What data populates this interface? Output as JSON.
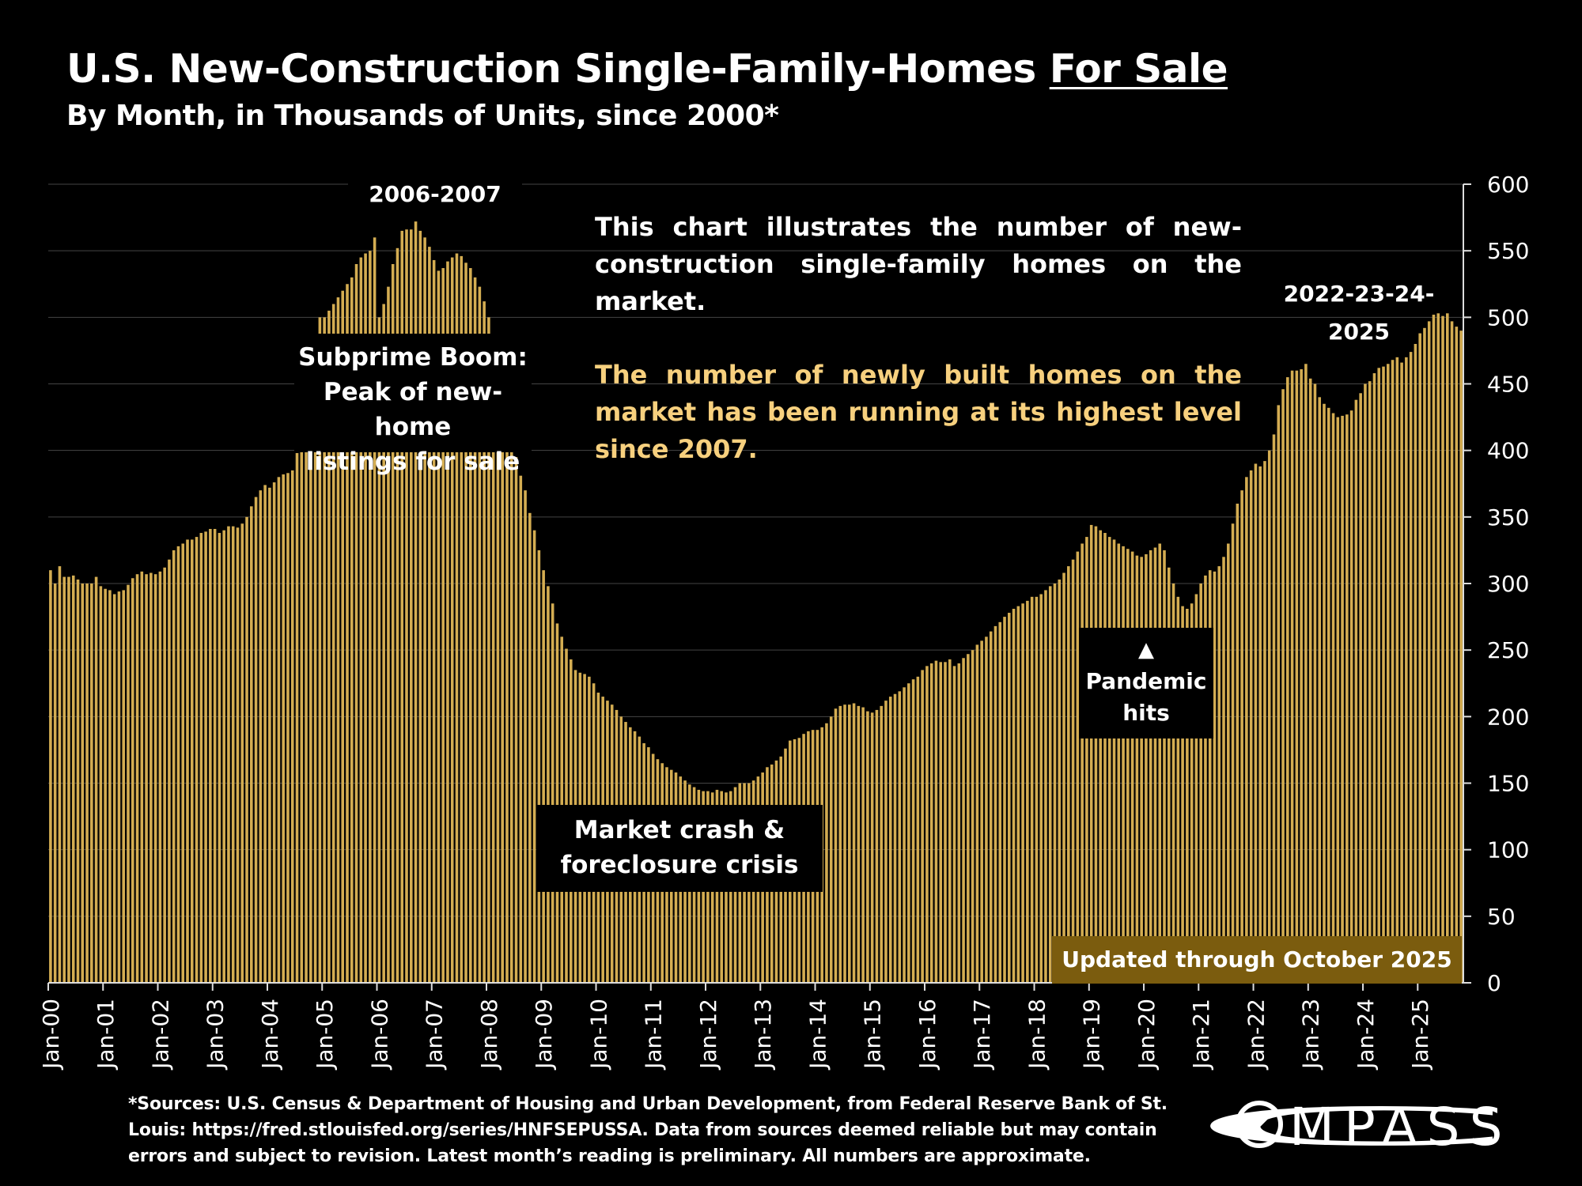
{
  "title_main": "U.S. New-Construction Single-Family-Homes ",
  "title_underlined": "For Sale",
  "subtitle": "By Month, in Thousands of Units, since 2000*",
  "annotations": {
    "peak_label": "2006-2007",
    "boom_line1": "Subprime Boom:",
    "boom_line2": "Peak of new-home",
    "boom_line3": "listings for sale",
    "crash_line1": "Market crash &",
    "crash_line2": "foreclosure crisis",
    "pandemic_arrow": "▲",
    "pandemic_line1": "Pandemic",
    "pandemic_line2": "hits",
    "recent_label": "2022-23-24-2025",
    "updated": "Updated through October 2025"
  },
  "info": {
    "text": "This chart illustrates the number of new-construction single-family homes on the market.",
    "highlight": "The number of newly built homes on the market has been running at its highest level since 2007."
  },
  "footer": {
    "line1": "*Sources: U.S. Census & Department of Housing and Urban Development, from Federal Reserve Bank of St.",
    "line2": "Louis:  https://fred.stlouisfed.org/series/HNFSEPUSSA. Data from sources deemed reliable but may contain",
    "line3": "errors and subject to revision. Latest month’s reading is preliminary. All numbers are approximate."
  },
  "logo_text": "COMPASS",
  "colors": {
    "bar": "#d4ad52",
    "background": "#000000",
    "grid": "#444444",
    "highlight_text": "#f7d07e",
    "updated_box": "#7b5c0e"
  },
  "chart_data": {
    "type": "bar",
    "title": "U.S. New-Construction Single-Family-Homes For Sale",
    "subtitle": "By Month, in Thousands of Units, since 2000*",
    "ylim": [
      0,
      600
    ],
    "y_ticks": [
      0,
      50,
      100,
      150,
      200,
      250,
      300,
      350,
      400,
      450,
      500,
      550,
      600
    ],
    "x_tick_labels": [
      "Jan-00",
      "Jan-01",
      "Jan-02",
      "Jan-03",
      "Jan-04",
      "Jan-05",
      "Jan-06",
      "Jan-07",
      "Jan-08",
      "Jan-09",
      "Jan-10",
      "Jan-11",
      "Jan-12",
      "Jan-13",
      "Jan-14",
      "Jan-15",
      "Jan-16",
      "Jan-17",
      "Jan-18",
      "Jan-19",
      "Jan-20",
      "Jan-21",
      "Jan-22",
      "Jan-23",
      "Jan-24",
      "Jan-25"
    ],
    "grid": true,
    "y_axis_position": "right",
    "first_month": "Jan-00",
    "last_month": "Oct-25",
    "yearly_values": [
      [
        310,
        300,
        313,
        305,
        305,
        306,
        303,
        300,
        300,
        300,
        305,
        298
      ],
      [
        296,
        295,
        292,
        294,
        295,
        299,
        304,
        307,
        309,
        307,
        308,
        307
      ],
      [
        309,
        312,
        318,
        325,
        328,
        330,
        333,
        333,
        335,
        338,
        339,
        341
      ],
      [
        341,
        338,
        340,
        343,
        343,
        342,
        345,
        350,
        358,
        365,
        370,
        374
      ],
      [
        372,
        376,
        380,
        382,
        383,
        385,
        398,
        420,
        440,
        460,
        480,
        500
      ],
      [
        500,
        505,
        510,
        515,
        520,
        525,
        530,
        540,
        545,
        548,
        550,
        560
      ],
      [
        500,
        510,
        523,
        540,
        552,
        565,
        566,
        566,
        572,
        565,
        560,
        553
      ],
      [
        543,
        535,
        537,
        542,
        545,
        548,
        546,
        541,
        537,
        530,
        523,
        512
      ],
      [
        500,
        480,
        460,
        440,
        420,
        400,
        395,
        381,
        370,
        353,
        340,
        325
      ],
      [
        310,
        298,
        285,
        270,
        260,
        251,
        243,
        235,
        233,
        232,
        230,
        225
      ],
      [
        218,
        215,
        212,
        209,
        205,
        200,
        196,
        192,
        189,
        185,
        180,
        177
      ],
      [
        172,
        168,
        165,
        162,
        160,
        158,
        155,
        152,
        149,
        147,
        145,
        144
      ],
      [
        144,
        143,
        145,
        144,
        143,
        144,
        147,
        150,
        150,
        150,
        152,
        155
      ],
      [
        158,
        162,
        164,
        167,
        170,
        176,
        182,
        183,
        184,
        187,
        189,
        190
      ],
      [
        190,
        192,
        195,
        200,
        206,
        208,
        209,
        209,
        210,
        208,
        207,
        204
      ],
      [
        203,
        205,
        208,
        212,
        215,
        217,
        219,
        222,
        225,
        228,
        230,
        235
      ],
      [
        238,
        240,
        242,
        241,
        241,
        243,
        238,
        240,
        244,
        247,
        250,
        254
      ],
      [
        257,
        260,
        264,
        268,
        271,
        275,
        278,
        281,
        283,
        285,
        287,
        290
      ],
      [
        290,
        292,
        295,
        298,
        300,
        303,
        308,
        313,
        318,
        324,
        330,
        335
      ],
      [
        344,
        343,
        340,
        338,
        335,
        333,
        330,
        328,
        326,
        324,
        321,
        320
      ],
      [
        322,
        325,
        327,
        330,
        325,
        312,
        300,
        290,
        283,
        281,
        285,
        292
      ],
      [
        300,
        306,
        310,
        309,
        313,
        320,
        330,
        345,
        360,
        370,
        380,
        385
      ],
      [
        390,
        388,
        392,
        400,
        412,
        434,
        446,
        455,
        460,
        460,
        461,
        465
      ],
      [
        454,
        450,
        440,
        435,
        432,
        428,
        425,
        426,
        427,
        430,
        438,
        443
      ],
      [
        450,
        452,
        458,
        462,
        463,
        465,
        468,
        470,
        466,
        470,
        474,
        480
      ],
      [
        488,
        492,
        497,
        502,
        503,
        501,
        503,
        497,
        493,
        490
      ]
    ]
  }
}
